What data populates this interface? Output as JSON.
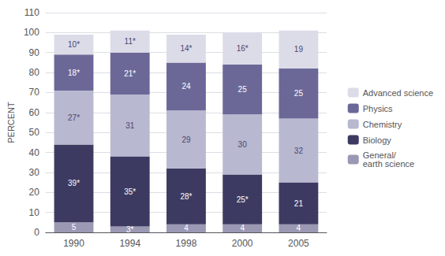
{
  "chart_data": {
    "type": "bar",
    "stacked": true,
    "categories": [
      "1990",
      "1994",
      "1998",
      "2000",
      "2005"
    ],
    "ylabel": "PERCENT",
    "ylim": [
      0,
      110
    ],
    "yticks": [
      0,
      10,
      20,
      30,
      40,
      50,
      60,
      70,
      80,
      90,
      100,
      110
    ],
    "grid": true,
    "legend": "right",
    "data_labels": true,
    "series": [
      {
        "name": "General/\nearth science",
        "color": "#9b98b4",
        "values": [
          5,
          3,
          4,
          4,
          4
        ],
        "value_labels": [
          "5",
          "3*",
          "4",
          "4",
          "4"
        ]
      },
      {
        "name": "Biology",
        "color": "#3d3a62",
        "values": [
          39,
          35,
          28,
          25,
          21
        ],
        "value_labels": [
          "39*",
          "35*",
          "28*",
          "25*",
          "21"
        ]
      },
      {
        "name": "Chemistry",
        "color": "#b8b8d0",
        "values": [
          27,
          31,
          29,
          30,
          32
        ],
        "value_labels": [
          "27*",
          "31",
          "29",
          "30",
          "32"
        ]
      },
      {
        "name": "Physics",
        "color": "#6b6898",
        "values": [
          18,
          21,
          24,
          25,
          25
        ],
        "value_labels": [
          "18*",
          "21*",
          "24",
          "25",
          "25"
        ]
      },
      {
        "name": "Advanced science",
        "color": "#dcdce8",
        "values": [
          10,
          11,
          14,
          16,
          19
        ],
        "value_labels": [
          "10*",
          "11*",
          "14*",
          "16*",
          "19"
        ]
      }
    ]
  }
}
